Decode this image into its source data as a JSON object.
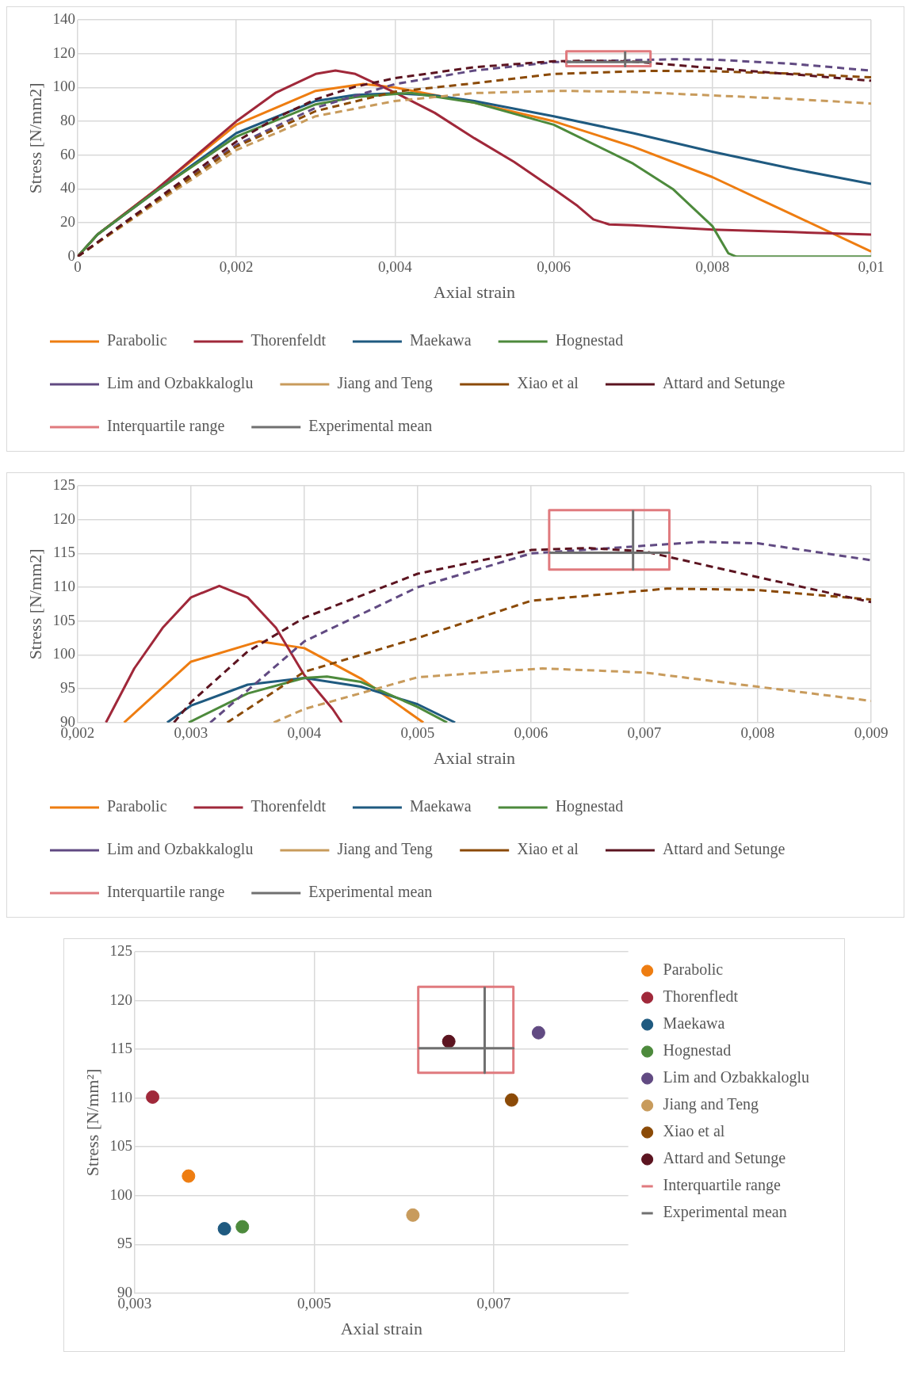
{
  "chart_data": [
    {
      "type": "line",
      "xlabel": "Axial strain",
      "ylabel": "Stress [N/mm2]",
      "xlim": [
        0,
        0.01
      ],
      "ylim": [
        0,
        140
      ],
      "xticks": [
        0,
        {
          "value": 0.002,
          "label": "0,002"
        },
        {
          "value": 0.004,
          "label": "0,004"
        },
        {
          "value": 0.006,
          "label": "0,006"
        },
        {
          "value": 0.008,
          "label": "0,008"
        },
        {
          "value": 0.01,
          "label": "0,01"
        }
      ],
      "yticks": [
        0,
        20,
        40,
        60,
        80,
        100,
        120,
        140
      ],
      "grid": true,
      "legend": "bottom",
      "marker": "none",
      "series": [
        {
          "name": "Parabolic",
          "color": "#ee7d11",
          "line_style": "solid",
          "x": [
            0,
            0.00025,
            0.001,
            0.002,
            0.003,
            0.0036,
            0.004,
            0.005,
            0.006,
            0.007,
            0.008,
            0.009,
            0.01
          ],
          "values": [
            0,
            13,
            40,
            78,
            98,
            102,
            100,
            91,
            80,
            65,
            47,
            25,
            3
          ]
        },
        {
          "name": "Thorenfeldt",
          "color": "#a0283a",
          "line_style": "solid",
          "x": [
            0,
            0.00025,
            0.001,
            0.002,
            0.0025,
            0.003,
            0.00325,
            0.0035,
            0.004,
            0.0045,
            0.005,
            0.0055,
            0.006,
            0.0063,
            0.0065,
            0.0067,
            0.007,
            0.008,
            0.009,
            0.01
          ],
          "values": [
            0,
            13,
            40,
            80,
            97,
            108,
            110,
            108,
            97,
            85,
            70,
            56,
            40,
            30,
            22,
            19,
            18.5,
            16,
            14.5,
            13
          ]
        },
        {
          "name": "Maekawa",
          "color": "#1f5a80",
          "line_style": "solid",
          "x": [
            0,
            0.00025,
            0.001,
            0.002,
            0.003,
            0.0035,
            0.004,
            0.0045,
            0.005,
            0.006,
            0.007,
            0.008,
            0.009,
            0.01
          ],
          "values": [
            0,
            13,
            39,
            73,
            92,
            95.6,
            96.6,
            95.3,
            92,
            83,
            73,
            62,
            52,
            43
          ]
        },
        {
          "name": "Hognestad",
          "color": "#4d8a3c",
          "line_style": "solid",
          "x": [
            0,
            0.00025,
            0.001,
            0.002,
            0.003,
            0.0035,
            0.0042,
            0.005,
            0.006,
            0.007,
            0.0075,
            0.008,
            0.0082,
            0.0083,
            0.01
          ],
          "values": [
            0,
            13,
            39,
            71,
            90,
            94.3,
            96.8,
            91,
            78,
            55,
            40,
            18,
            2,
            0,
            0
          ]
        },
        {
          "name": "Lim and Ozbakkaloglu",
          "color": "#614a82",
          "line_style": "dashed",
          "x": [
            0,
            0.001,
            0.002,
            0.003,
            0.004,
            0.005,
            0.006,
            0.0075,
            0.008,
            0.009,
            0.01
          ],
          "values": [
            0,
            33,
            66,
            88,
            102,
            110,
            115,
            116.7,
            116.5,
            114,
            110
          ]
        },
        {
          "name": "Jiang and Teng",
          "color": "#c89b5c",
          "line_style": "dashed",
          "x": [
            0,
            0.001,
            0.002,
            0.003,
            0.004,
            0.005,
            0.0061,
            0.007,
            0.008,
            0.009,
            0.01
          ],
          "values": [
            0,
            32,
            63,
            83,
            92,
            96.7,
            98,
            97.4,
            95.3,
            93.2,
            90.5
          ]
        },
        {
          "name": "Xiao et al",
          "color": "#8b4a07",
          "line_style": "dashed",
          "x": [
            0,
            0.001,
            0.002,
            0.003,
            0.004,
            0.005,
            0.006,
            0.0072,
            0.008,
            0.009,
            0.01
          ],
          "values": [
            0,
            33,
            65,
            86,
            97.5,
            102.5,
            108,
            109.8,
            109.6,
            108.2,
            106
          ]
        },
        {
          "name": "Attard and Setunge",
          "color": "#5c1420",
          "line_style": "dashed",
          "x": [
            0,
            0.001,
            0.002,
            0.0025,
            0.003,
            0.0035,
            0.004,
            0.005,
            0.006,
            0.0065,
            0.007,
            0.008,
            0.009,
            0.01
          ],
          "values": [
            0,
            34,
            68,
            82,
            93,
            100.5,
            105.5,
            112,
            115.5,
            115.8,
            115.3,
            111.5,
            107.8,
            104
          ]
        },
        {
          "name": "Interquartile range",
          "color": "#e07a7e",
          "line_style": "solid",
          "x": [
            0.00616,
            0.00722,
            0.00722,
            0.00616,
            0.00616,
            0.00722
          ],
          "values": [
            112.6,
            112.6,
            121.4,
            121.4,
            112.6,
            112.6
          ]
        },
        {
          "name": "Experimental mean",
          "color": "#707070",
          "line_style": "solid",
          "x": [
            0.00616,
            0.00722,
            0.0069,
            0.0069,
            0.0069
          ],
          "values": [
            115.1,
            115.1,
            115.1,
            112.6,
            121.4
          ]
        }
      ]
    },
    {
      "type": "line",
      "xlabel": "Axial strain",
      "ylabel": "Stress [N/mm2]",
      "xlim": [
        0.002,
        0.009
      ],
      "ylim": [
        90,
        125
      ],
      "xticks": [
        {
          "value": 0.002,
          "label": "0,002"
        },
        {
          "value": 0.003,
          "label": "0,003"
        },
        {
          "value": 0.004,
          "label": "0,004"
        },
        {
          "value": 0.005,
          "label": "0,005"
        },
        {
          "value": 0.006,
          "label": "0,006"
        },
        {
          "value": 0.007,
          "label": "0,007"
        },
        {
          "value": 0.008,
          "label": "0,008"
        },
        {
          "value": 0.009,
          "label": "0,009"
        }
      ],
      "yticks": [
        90,
        95,
        100,
        105,
        110,
        115,
        120,
        125
      ],
      "grid": true,
      "legend": "bottom",
      "marker": "none",
      "series": [
        {
          "name": "Parabolic",
          "color": "#ee7d11",
          "line_style": "solid",
          "x": [
            0.00241,
            0.003,
            0.0036,
            0.004,
            0.0045,
            0.005,
            0.00505
          ],
          "values": [
            90,
            99,
            102,
            101,
            96.5,
            90.6,
            90
          ]
        },
        {
          "name": "Thorenfeldt",
          "color": "#a0283a",
          "line_style": "solid",
          "x": [
            0.00225,
            0.0025,
            0.00275,
            0.003,
            0.00325,
            0.0035,
            0.00375,
            0.004,
            0.00425,
            0.00433
          ],
          "values": [
            90,
            98,
            104,
            108.5,
            110.2,
            108.5,
            104,
            97,
            92,
            90
          ]
        },
        {
          "name": "Maekawa",
          "color": "#1f5a80",
          "line_style": "solid",
          "x": [
            0.00279,
            0.003,
            0.0035,
            0.004,
            0.0045,
            0.005,
            0.00533
          ],
          "values": [
            90,
            92.5,
            95.6,
            96.6,
            95.3,
            92.7,
            90
          ]
        },
        {
          "name": "Hognestad",
          "color": "#4d8a3c",
          "line_style": "solid",
          "x": [
            0.00298,
            0.0035,
            0.004,
            0.0042,
            0.0045,
            0.005,
            0.00526
          ],
          "values": [
            90,
            94.3,
            96.6,
            96.8,
            96,
            92.3,
            90
          ]
        },
        {
          "name": "Lim and Ozbakkaloglu",
          "color": "#614a82",
          "line_style": "dashed",
          "x": [
            0.00317,
            0.004,
            0.005,
            0.006,
            0.0075,
            0.008,
            0.009
          ],
          "values": [
            90,
            102,
            110,
            115,
            116.7,
            116.5,
            114
          ]
        },
        {
          "name": "Jiang and Teng",
          "color": "#c89b5c",
          "line_style": "dashed",
          "x": [
            0.00373,
            0.004,
            0.005,
            0.0061,
            0.007,
            0.008,
            0.009
          ],
          "values": [
            90,
            92,
            96.7,
            98,
            97.4,
            95.3,
            93.2
          ]
        },
        {
          "name": "Xiao et al",
          "color": "#8b4a07",
          "line_style": "dashed",
          "x": [
            0.00332,
            0.004,
            0.005,
            0.006,
            0.0072,
            0.008,
            0.009
          ],
          "values": [
            90,
            97.5,
            102.5,
            108,
            109.8,
            109.6,
            108.2
          ]
        },
        {
          "name": "Attard and Setunge",
          "color": "#5c1420",
          "line_style": "dashed",
          "x": [
            0.00285,
            0.003,
            0.0035,
            0.004,
            0.005,
            0.006,
            0.0065,
            0.007,
            0.008,
            0.009
          ],
          "values": [
            90,
            93,
            100.5,
            105.5,
            112,
            115.5,
            115.8,
            115.3,
            111.5,
            107.8
          ]
        },
        {
          "name": "Interquartile range",
          "color": "#e07a7e",
          "line_style": "solid",
          "x": [
            0.00616,
            0.00722,
            0.00722,
            0.00616,
            0.00616,
            0.00722
          ],
          "values": [
            112.6,
            112.6,
            121.4,
            121.4,
            112.6,
            112.6
          ]
        },
        {
          "name": "Experimental mean",
          "color": "#707070",
          "line_style": "solid",
          "x": [
            0.00616,
            0.00722,
            0.0069,
            0.0069,
            0.0069
          ],
          "values": [
            115.1,
            115.1,
            115.1,
            112.6,
            121.4
          ]
        }
      ]
    },
    {
      "type": "scatter",
      "xlabel": "Axial strain",
      "ylabel": "Stress [N/mm²]",
      "xlim": [
        0.003,
        0.0085
      ],
      "ylim": [
        90,
        125
      ],
      "xticks": [
        {
          "value": 0.003,
          "label": "0,003"
        },
        {
          "value": 0.005,
          "label": "0,005"
        },
        {
          "value": 0.007,
          "label": "0,007"
        }
      ],
      "yticks": [
        90,
        95,
        100,
        105,
        110,
        115,
        120,
        125
      ],
      "grid": true,
      "legend": "right",
      "marker": "circle",
      "series": [
        {
          "name": "Parabolic",
          "color": "#ee7d11",
          "x": [
            0.0036
          ],
          "values": [
            102
          ]
        },
        {
          "name": "Thorenfledt",
          "color": "#a0283a",
          "x": [
            0.0032
          ],
          "values": [
            110.1
          ]
        },
        {
          "name": "Maekawa",
          "color": "#1f5a80",
          "x": [
            0.004
          ],
          "values": [
            96.6
          ]
        },
        {
          "name": "Hognestad",
          "color": "#4d8a3c",
          "x": [
            0.0042
          ],
          "values": [
            96.8
          ]
        },
        {
          "name": "Lim and Ozbakkaloglu",
          "color": "#614a82",
          "x": [
            0.0075
          ],
          "values": [
            116.7
          ]
        },
        {
          "name": "Jiang and Teng",
          "color": "#c89b5c",
          "x": [
            0.0061
          ],
          "values": [
            98
          ]
        },
        {
          "name": "Xiao et al",
          "color": "#8b4a07",
          "x": [
            0.0072
          ],
          "values": [
            109.8
          ]
        },
        {
          "name": "Attard and Setunge",
          "color": "#5c1420",
          "x": [
            0.0065
          ],
          "values": [
            115.8
          ]
        },
        {
          "name": "Interquartile range",
          "type": "line",
          "line_style": "solid",
          "marker": "none",
          "color": "#e07a7e",
          "x": [
            0.00616,
            0.00722,
            0.00722,
            0.00616,
            0.00616,
            0.00722
          ],
          "values": [
            112.6,
            112.6,
            121.4,
            121.4,
            112.6,
            112.6
          ]
        },
        {
          "name": "Experimental mean",
          "type": "line",
          "line_style": "solid",
          "marker": "none",
          "color": "#707070",
          "x": [
            0.00616,
            0.00722,
            0.0069,
            0.0069,
            0.0069
          ],
          "values": [
            115.1,
            115.1,
            115.1,
            112.6,
            121.4
          ]
        }
      ]
    }
  ]
}
